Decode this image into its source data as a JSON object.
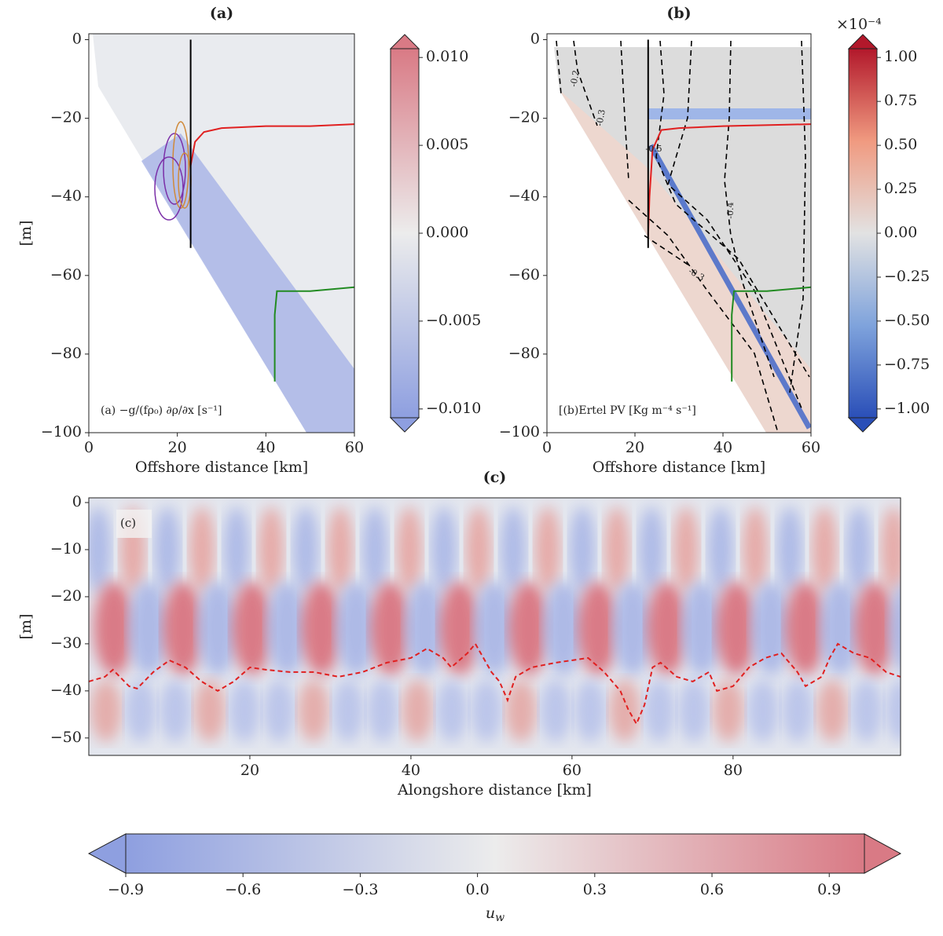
{
  "chart_data": [
    {
      "type": "contour",
      "title": "(a)",
      "xlabel": "Offshore distance [km]",
      "ylabel": "[m]",
      "annotation": "(a) −g/(fρ₀) ∂ρ/∂x [s⁻¹]",
      "xlim": [
        0,
        60
      ],
      "ylim": [
        -100,
        1.5
      ],
      "xticks": [
        0,
        20,
        40,
        60
      ],
      "yticks": [
        {
          "value": -100,
          "label": "−100"
        },
        {
          "value": -80,
          "label": "−80"
        },
        {
          "value": -60,
          "label": "−60"
        },
        {
          "value": -40,
          "label": "−40"
        },
        {
          "value": -20,
          "label": "−20"
        },
        0
      ],
      "series": [
        {
          "color": "#e02020",
          "x": [
            23,
            23.5,
            24,
            26,
            30,
            40,
            50,
            60
          ],
          "values": [
            -32,
            -29,
            -26,
            -23.5,
            -22.5,
            -22,
            -22,
            -21.5
          ]
        },
        {
          "color": "#228b22",
          "x": [
            42,
            42,
            42.5,
            45,
            50,
            60
          ],
          "values": [
            -87,
            -70,
            -64,
            -64,
            -64,
            -63
          ]
        },
        {
          "color": "#000000",
          "x": [
            23,
            23
          ],
          "values": [
            0,
            -53
          ]
        }
      ],
      "colorbar": {
        "lim": [
          -0.0105,
          0.0105
        ],
        "ticks": [
          {
            "value": -0.01,
            "label": "−0.010"
          },
          {
            "value": -0.005,
            "label": "−0.005"
          },
          {
            "value": 0,
            "label": "0.000"
          },
          {
            "value": 0.005,
            "label": "0.005"
          },
          {
            "value": 0.01,
            "label": "0.010"
          }
        ]
      }
    },
    {
      "type": "contour",
      "title": "(b)",
      "xlabel": "Offshore distance [km]",
      "annotation": "[(b)Ertel PV [Kg m⁻⁴ s⁻¹]",
      "contour_labels": [
        "-0.2",
        "-0.3",
        "-0.5",
        "-0.4",
        "-0.3"
      ],
      "xlim": [
        0,
        60
      ],
      "ylim": [
        -100,
        1.5
      ],
      "xticks": [
        0,
        20,
        40,
        60
      ],
      "yticks": [
        {
          "value": -100,
          "label": "−100"
        },
        {
          "value": -80,
          "label": "−80"
        },
        {
          "value": -60,
          "label": "−60"
        },
        {
          "value": -40,
          "label": "−40"
        },
        {
          "value": -20,
          "label": "−20"
        },
        0
      ],
      "series": [
        {
          "color": "#e02020",
          "x": [
            23,
            23.3,
            24,
            26,
            30,
            40,
            60
          ],
          "values": [
            -50,
            -40,
            -28,
            -23,
            -22.5,
            -22,
            -21.5
          ]
        },
        {
          "color": "#228b22",
          "x": [
            42,
            42,
            42.5,
            45,
            50,
            60
          ],
          "values": [
            -87,
            -70,
            -64,
            -64,
            -64,
            -63
          ]
        },
        {
          "color": "#000000",
          "x": [
            23,
            23
          ],
          "values": [
            0,
            -53
          ]
        }
      ],
      "colorbar": {
        "lim": [
          -1.05,
          1.05
        ],
        "multiplier": "×10⁻⁴",
        "ticks": [
          {
            "value": -1,
            "label": "−1.00"
          },
          {
            "value": -0.75,
            "label": "−0.75"
          },
          {
            "value": -0.5,
            "label": "−0.50"
          },
          {
            "value": -0.25,
            "label": "−0.25"
          },
          {
            "value": 0,
            "label": "0.00"
          },
          {
            "value": 0.25,
            "label": "0.25"
          },
          {
            "value": 0.5,
            "label": "0.50"
          },
          {
            "value": 0.75,
            "label": "0.75"
          },
          {
            "value": 1,
            "label": "1.00"
          }
        ]
      }
    },
    {
      "type": "contour",
      "title": "(c)",
      "xlabel": "Alongshore distance [km]",
      "ylabel": "[m]",
      "annotation": "(c)",
      "xlim": [
        0,
        100.8
      ],
      "ylim": [
        -53.7,
        1
      ],
      "xticks": [
        20,
        40,
        60,
        80
      ],
      "yticks": [
        {
          "value": -50,
          "label": "−50"
        },
        {
          "value": -40,
          "label": "−40"
        },
        {
          "value": -30,
          "label": "−30"
        },
        {
          "value": -20,
          "label": "−20"
        },
        {
          "value": -10,
          "label": "−10"
        },
        0
      ],
      "series": [
        {
          "color": "#e02020",
          "style": "dashed",
          "x": [
            0,
            2,
            3,
            5,
            6,
            8,
            10,
            12,
            14,
            16,
            18,
            20,
            22,
            25,
            28,
            31,
            34,
            37,
            40,
            42,
            44,
            45,
            47,
            48,
            49,
            50,
            51,
            52,
            53,
            55,
            58,
            62,
            64,
            66,
            67,
            68,
            69,
            70,
            71,
            73,
            75,
            77,
            78,
            80,
            82,
            84,
            86,
            88,
            89,
            91,
            92,
            93,
            95,
            97,
            99,
            100.8
          ],
          "values": [
            -38,
            -37,
            -35.5,
            -39,
            -39.5,
            -36,
            -33.5,
            -35,
            -38,
            -40,
            -38,
            -35,
            -35.5,
            -36,
            -36,
            -37,
            -36,
            -34,
            -33,
            -31,
            -33,
            -35,
            -32,
            -30,
            -33,
            -36,
            -38,
            -42,
            -37,
            -35,
            -34,
            -33,
            -36,
            -40,
            -44,
            -47,
            -43,
            -35,
            -34,
            -37,
            -38,
            -36,
            -40,
            -39,
            -35,
            -33,
            -32,
            -36,
            -39,
            -37,
            -33,
            -30,
            -32,
            -33,
            -36,
            -37
          ]
        }
      ],
      "colorbar": {
        "lim": [
          -0.9,
          0.99
        ],
        "label": "u_w",
        "ticks": [
          {
            "value": -0.9,
            "label": "−0.9"
          },
          {
            "value": -0.6,
            "label": "−0.6"
          },
          {
            "value": -0.3,
            "label": "−0.3"
          },
          {
            "value": 0,
            "label": "0.0"
          },
          {
            "value": 0.3,
            "label": "0.3"
          },
          {
            "value": 0.6,
            "label": "0.6"
          },
          {
            "value": 0.9,
            "label": "0.9"
          }
        ]
      }
    }
  ]
}
